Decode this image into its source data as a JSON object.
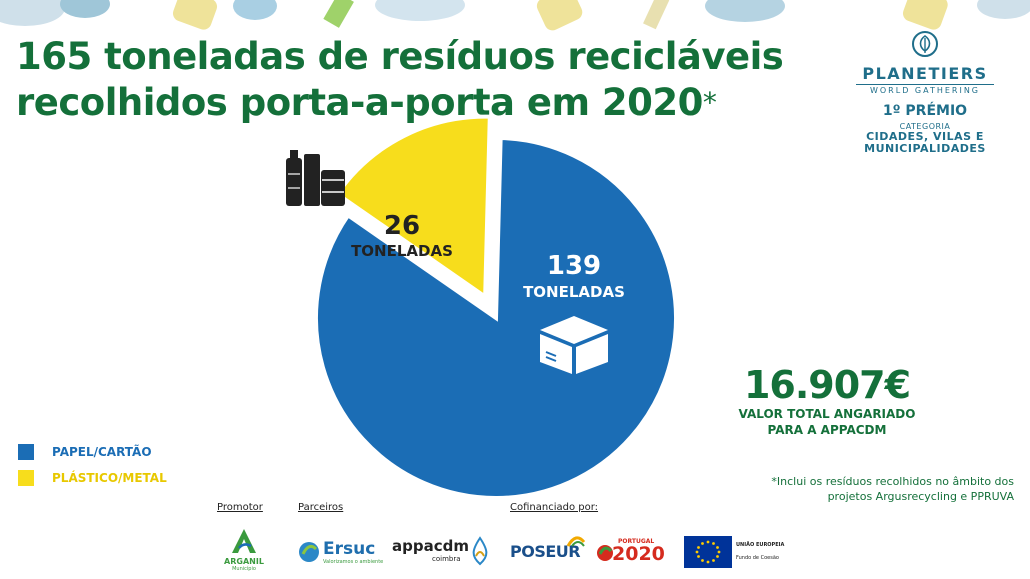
{
  "title": {
    "line1": "165 toneladas de resíduos recicláveis",
    "line2": "recolhidos porta-a-porta em 2020",
    "asterisk": "*"
  },
  "award": {
    "brand": "PLANETIERS",
    "subtitle": "WORLD GATHERING",
    "prize": "1º PRÉMIO",
    "category_label": "CATEGORIA",
    "category_line1": "CIDADES, VILAS E",
    "category_line2": "MUNICIPALIDADES"
  },
  "chart_data": {
    "type": "pie",
    "categories": [
      "PAPEL/CARTÃO",
      "PLÁSTICO/METAL"
    ],
    "values": [
      139,
      26
    ],
    "value_unit_label": "TONELADAS",
    "colors": [
      "#1b6db5",
      "#f7dd1c"
    ],
    "legend_position": "bottom-left",
    "icons": [
      "box-icon",
      "bottles-icon"
    ]
  },
  "total": {
    "amount": "16.907€",
    "label_line1": "VALOR TOTAL ANGARIADO",
    "label_line2": "PARA A APPACDM"
  },
  "footnote": {
    "line1": "*Inclui os resíduos recolhidos no âmbito dos",
    "line2": "projetos Argusrecycling e PPRUVA"
  },
  "footer": {
    "promotor_label": "Promotor",
    "parceiros_label": "Parceiros",
    "cofinanciado_label": "Cofinanciado por:",
    "arganil": "ARGANIL",
    "arganil_sub": "Município",
    "ersuc": "Ersuc",
    "ersuc_tagline": "Valorizamos o ambiente",
    "appacdm": "appacdm",
    "appacdm_city": "coimbra",
    "poseur": "POSEUR",
    "portugal": "PORTUGAL",
    "portugal_year": "2020",
    "eu": "UNIÃO EUROPEIA",
    "eu_fund": "Fundo de Coesão"
  },
  "colors": {
    "green": "#14703a",
    "blue": "#1b6db5",
    "yellow": "#f7dd1c",
    "award_blue": "#1f6e8a"
  }
}
